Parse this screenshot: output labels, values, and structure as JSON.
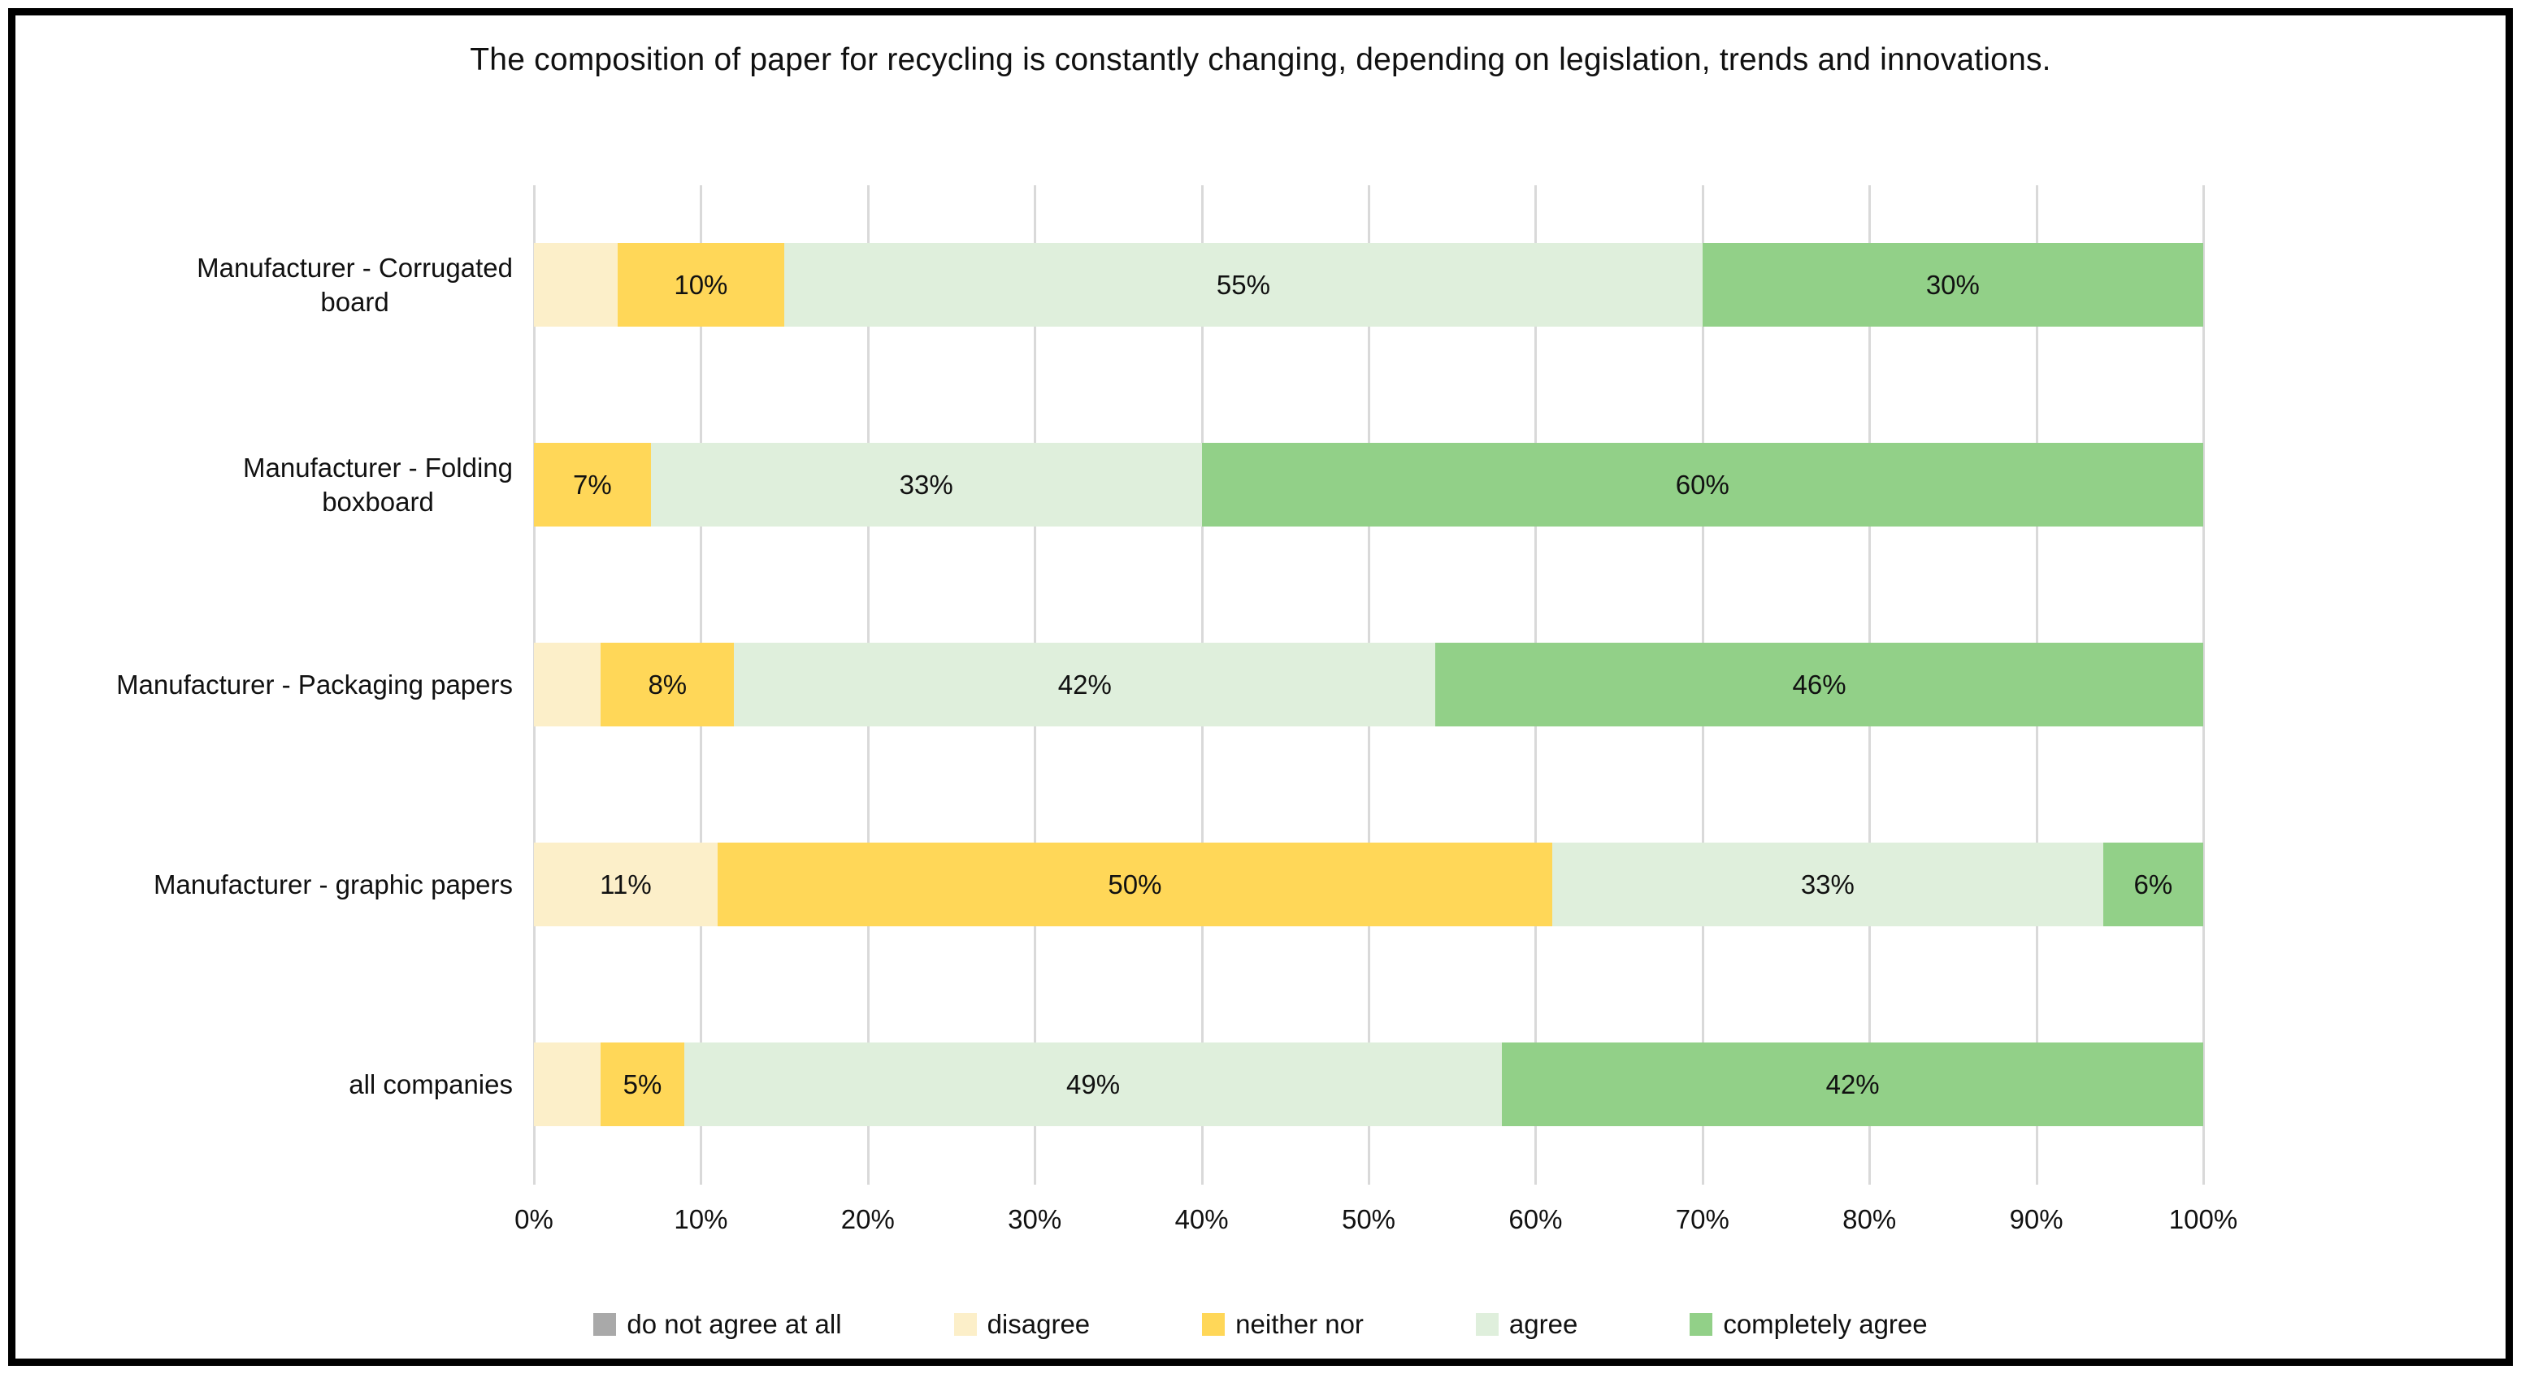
{
  "chart_data": {
    "type": "bar",
    "orientation": "horizontal-stacked",
    "title": "The composition of paper for recycling is constantly changing, depending on legislation, trends and innovations.",
    "categories": [
      "Manufacturer - Corrugated\nboard",
      "Manufacturer - Folding\nboxboard",
      "Manufacturer - Packaging papers",
      "Manufacturer - graphic papers",
      "all companies"
    ],
    "series": [
      {
        "name": "do not agree at all",
        "color": "#a9a9a9",
        "values": [
          0,
          0,
          0,
          0,
          0
        ],
        "labels": [
          "",
          "",
          "",
          "",
          ""
        ]
      },
      {
        "name": "disagree",
        "color": "#fcefc9",
        "values": [
          5,
          0,
          4,
          11,
          4
        ],
        "labels": [
          "",
          "",
          "",
          "11%",
          ""
        ]
      },
      {
        "name": "neither nor",
        "color": "#ffd758",
        "values": [
          10,
          7,
          8,
          50,
          5
        ],
        "labels": [
          "10%",
          "7%",
          "8%",
          "50%",
          "5%"
        ]
      },
      {
        "name": "agree",
        "color": "#dfefdc",
        "values": [
          55,
          33,
          42,
          33,
          49
        ],
        "labels": [
          "55%",
          "33%",
          "42%",
          "33%",
          "49%"
        ]
      },
      {
        "name": "completely agree",
        "color": "#92d088",
        "values": [
          30,
          60,
          46,
          6,
          42
        ],
        "labels": [
          "30%",
          "60%",
          "46%",
          "6%",
          "42%"
        ]
      }
    ],
    "x_ticks": [
      "0%",
      "10%",
      "20%",
      "30%",
      "40%",
      "50%",
      "60%",
      "70%",
      "80%",
      "90%",
      "100%"
    ],
    "xlim": [
      0,
      100
    ],
    "grid": true,
    "gridline_color": "#d9d9d9",
    "legend_position": "bottom"
  }
}
